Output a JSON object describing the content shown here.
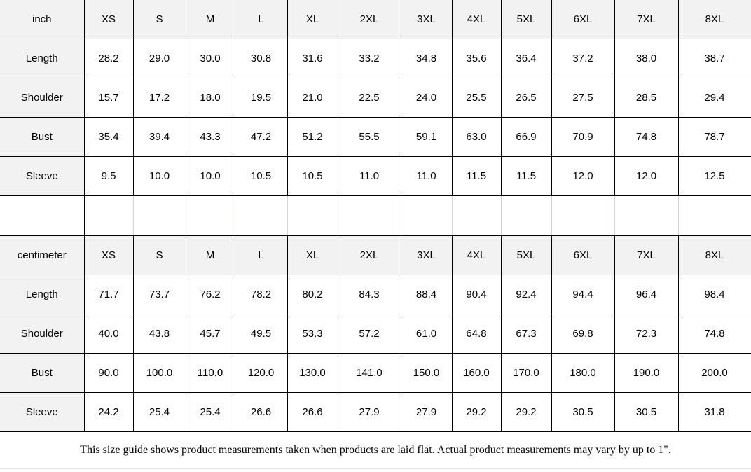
{
  "colors": {
    "header_bg": "#f2f2f2",
    "label_bg": "#f2f2f2",
    "cell_bg": "#ffffff",
    "strong_border": "#000000",
    "faint_border": "#ccd3e0",
    "text": "#000000"
  },
  "sizes": [
    "XS",
    "S",
    "M",
    "L",
    "XL",
    "2XL",
    "3XL",
    "4XL",
    "5XL",
    "6XL",
    "7XL",
    "8XL"
  ],
  "tables": [
    {
      "unit_label": "inch",
      "rows": [
        {
          "label": "Length",
          "values": [
            "28.2",
            "29.0",
            "30.0",
            "30.8",
            "31.6",
            "33.2",
            "34.8",
            "35.6",
            "36.4",
            "37.2",
            "38.0",
            "38.7"
          ]
        },
        {
          "label": "Shoulder",
          "values": [
            "15.7",
            "17.2",
            "18.0",
            "19.5",
            "21.0",
            "22.5",
            "24.0",
            "25.5",
            "26.5",
            "27.5",
            "28.5",
            "29.4"
          ]
        },
        {
          "label": "Bust",
          "values": [
            "35.4",
            "39.4",
            "43.3",
            "47.2",
            "51.2",
            "55.5",
            "59.1",
            "63.0",
            "66.9",
            "70.9",
            "74.8",
            "78.7"
          ]
        },
        {
          "label": "Sleeve",
          "values": [
            "9.5",
            "10.0",
            "10.0",
            "10.5",
            "10.5",
            "11.0",
            "11.0",
            "11.5",
            "11.5",
            "12.0",
            "12.0",
            "12.5"
          ]
        }
      ]
    },
    {
      "unit_label": "centimeter",
      "rows": [
        {
          "label": "Length",
          "values": [
            "71.7",
            "73.7",
            "76.2",
            "78.2",
            "80.2",
            "84.3",
            "88.4",
            "90.4",
            "92.4",
            "94.4",
            "96.4",
            "98.4"
          ]
        },
        {
          "label": "Shoulder",
          "values": [
            "40.0",
            "43.8",
            "45.7",
            "49.5",
            "53.3",
            "57.2",
            "61.0",
            "64.8",
            "67.3",
            "69.8",
            "72.3",
            "74.8"
          ]
        },
        {
          "label": "Bust",
          "values": [
            "90.0",
            "100.0",
            "110.0",
            "120.0",
            "130.0",
            "141.0",
            "150.0",
            "160.0",
            "170.0",
            "180.0",
            "190.0",
            "200.0"
          ]
        },
        {
          "label": "Sleeve",
          "values": [
            "24.2",
            "25.4",
            "25.4",
            "26.6",
            "26.6",
            "27.9",
            "27.9",
            "29.2",
            "29.2",
            "30.5",
            "30.5",
            "31.8"
          ]
        }
      ]
    }
  ],
  "footer": {
    "note": "This size guide shows product measurements taken when products are laid flat. Actual product measurements may vary by up to 1\"."
  }
}
